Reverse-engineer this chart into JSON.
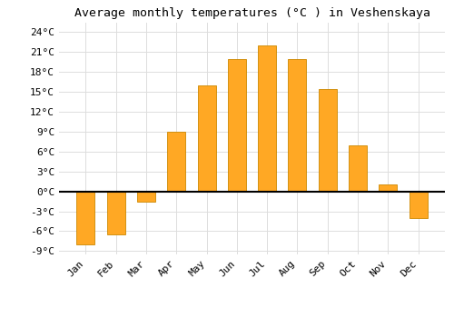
{
  "title": "Average monthly temperatures (°C ) in Veshenskaya",
  "months": [
    "Jan",
    "Feb",
    "Mar",
    "Apr",
    "May",
    "Jun",
    "Jul",
    "Aug",
    "Sep",
    "Oct",
    "Nov",
    "Dec"
  ],
  "temperatures": [
    -8,
    -6.5,
    -1.5,
    9,
    16,
    20,
    22,
    20,
    15.5,
    7,
    1,
    -4
  ],
  "bar_color": "#FFA824",
  "bar_edge_color": "#CC8800",
  "ylim_min": -9.5,
  "ylim_max": 25.5,
  "yticks": [
    -9,
    -6,
    -3,
    0,
    3,
    6,
    9,
    12,
    15,
    18,
    21,
    24
  ],
  "ytick_labels": [
    "-9°C",
    "-6°C",
    "-3°C",
    "0°C",
    "3°C",
    "6°C",
    "9°C",
    "12°C",
    "15°C",
    "18°C",
    "21°C",
    "24°C"
  ],
  "grid_color": "#dddddd",
  "bg_color": "#ffffff",
  "title_fontsize": 9.5,
  "tick_fontsize": 8,
  "bar_width": 0.6
}
